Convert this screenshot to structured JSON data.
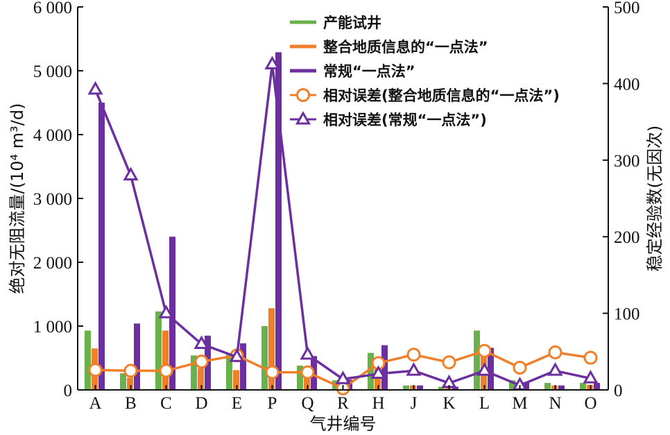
{
  "chart_data": {
    "type": "bar",
    "categories": [
      "A",
      "B",
      "C",
      "D",
      "E",
      "P",
      "Q",
      "R",
      "H",
      "J",
      "K",
      "L",
      "M",
      "N",
      "O"
    ],
    "xlabel": "气井编号",
    "ylabel": "绝对无阻流量/(10⁴ m³/d)",
    "y2label": "稳定经验数(无因次)",
    "ylim": [
      0,
      6000
    ],
    "y2lim": [
      0,
      500
    ],
    "yticks": [
      "0",
      "1 000",
      "2 000",
      "3 000",
      "4 000",
      "5 000",
      "6 000"
    ],
    "y2ticks": [
      "0",
      "100",
      "200",
      "300",
      "400",
      "500"
    ],
    "grid": false,
    "legend_position": "top-center",
    "bar_series": [
      {
        "name": "产能试井",
        "color": "#6ab04c",
        "values": [
          930,
          260,
          1230,
          540,
          560,
          1000,
          380,
          150,
          580,
          70,
          50,
          930,
          150,
          110,
          110
        ]
      },
      {
        "name": "整合地质信息的“一点法”",
        "color": "#f07f2a",
        "values": [
          650,
          190,
          930,
          340,
          310,
          1280,
          290,
          120,
          400,
          70,
          50,
          520,
          100,
          70,
          80
        ]
      },
      {
        "name": "常规“一点法”",
        "color": "#6b2fa0",
        "values": [
          4500,
          1040,
          2400,
          850,
          730,
          5290,
          530,
          160,
          700,
          70,
          50,
          660,
          120,
          70,
          110
        ]
      }
    ],
    "line_series": [
      {
        "name": "相对误差(整合地质信息的“一点法”)",
        "color": "#f07f2a",
        "marker": "circle",
        "values": [
          26,
          25,
          25,
          37,
          45,
          23,
          23,
          2,
          35,
          46,
          36,
          51,
          29,
          49,
          42
        ]
      },
      {
        "name": "相对误差(常规“一点法”)",
        "color": "#6b2fa0",
        "marker": "triangle",
        "values": [
          392,
          280,
          100,
          60,
          43,
          425,
          46,
          14,
          21,
          25,
          9,
          25,
          6,
          25,
          15
        ]
      }
    ]
  }
}
